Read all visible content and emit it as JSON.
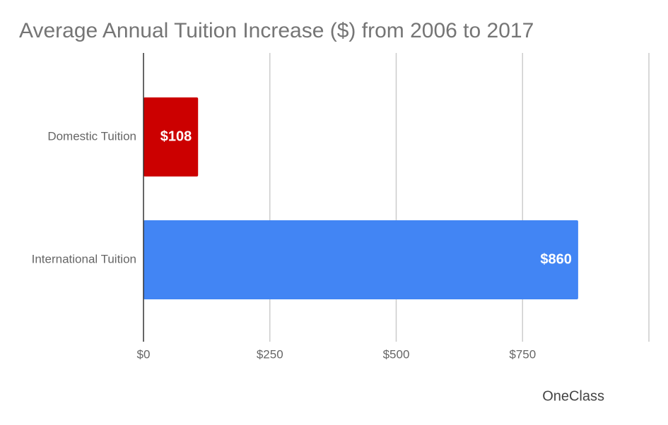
{
  "chart_data": {
    "type": "hbar",
    "title": "Average Annual Tuition Increase ($) from 2006 to 2017",
    "categories": [
      "Domestic Tuition",
      "International Tuition"
    ],
    "values": [
      108,
      860
    ],
    "value_labels": [
      "$108",
      "$860"
    ],
    "colors": [
      "#cc0000",
      "#4285f4"
    ],
    "xlim": [
      0,
      1000
    ],
    "xticks": [
      {
        "value": 0,
        "label": "$0"
      },
      {
        "value": 250,
        "label": "$250"
      },
      {
        "value": 500,
        "label": "$500"
      },
      {
        "value": 750,
        "label": "$750"
      }
    ],
    "grid": true
  },
  "watermark": "OneClass"
}
